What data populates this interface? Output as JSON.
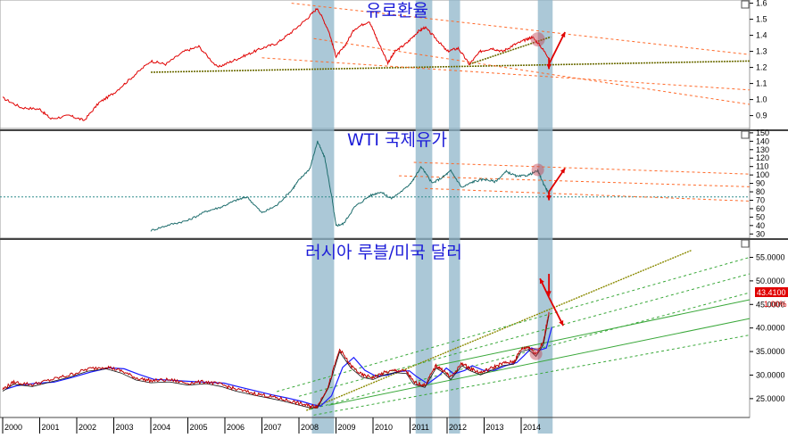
{
  "chart_data": [
    {
      "type": "line",
      "title": "유로환율",
      "x": [
        2000.0,
        2000.5,
        2001.0,
        2001.3,
        2001.8,
        2002.2,
        2002.6,
        2003.0,
        2003.5,
        2004.0,
        2004.4,
        2004.9,
        2005.3,
        2005.8,
        2006.2,
        2006.6,
        2007.0,
        2007.4,
        2007.8,
        2008.2,
        2008.5,
        2008.8,
        2009.0,
        2009.2,
        2009.5,
        2009.9,
        2010.1,
        2010.4,
        2010.6,
        2010.9,
        2011.2,
        2011.4,
        2011.7,
        2012.0,
        2012.3,
        2012.6,
        2012.9,
        2013.2,
        2013.5,
        2013.8,
        2014.1,
        2014.3,
        2014.5,
        2014.75
      ],
      "values": [
        1.01,
        0.95,
        0.94,
        0.88,
        0.9,
        0.87,
        0.98,
        1.04,
        1.14,
        1.24,
        1.22,
        1.3,
        1.33,
        1.2,
        1.24,
        1.28,
        1.32,
        1.35,
        1.42,
        1.5,
        1.57,
        1.43,
        1.27,
        1.32,
        1.44,
        1.49,
        1.38,
        1.23,
        1.3,
        1.35,
        1.42,
        1.45,
        1.38,
        1.3,
        1.32,
        1.22,
        1.3,
        1.32,
        1.3,
        1.34,
        1.37,
        1.39,
        1.34,
        1.26
      ],
      "ylim": [
        0.82,
        1.62
      ],
      "yticks": [
        "0.9",
        "1.0",
        "1.1",
        "1.2",
        "1.3",
        "1.4",
        "1.5",
        "1.6"
      ],
      "color": "#e00000"
    },
    {
      "type": "line",
      "title": "WTI 국제유가",
      "x": [
        2004.0,
        2004.5,
        2005.0,
        2005.5,
        2005.9,
        2006.3,
        2006.6,
        2007.0,
        2007.4,
        2007.8,
        2008.0,
        2008.3,
        2008.5,
        2008.7,
        2008.9,
        2009.0,
        2009.2,
        2009.5,
        2009.9,
        2010.2,
        2010.5,
        2010.9,
        2011.1,
        2011.3,
        2011.6,
        2011.9,
        2012.1,
        2012.4,
        2012.7,
        2013.0,
        2013.3,
        2013.6,
        2013.9,
        2014.2,
        2014.45,
        2014.6,
        2014.75
      ],
      "values": [
        34,
        41,
        46,
        57,
        62,
        70,
        74,
        55,
        64,
        82,
        94,
        108,
        140,
        120,
        70,
        40,
        42,
        62,
        75,
        80,
        72,
        85,
        95,
        110,
        90,
        98,
        105,
        85,
        92,
        95,
        92,
        104,
        98,
        100,
        105,
        90,
        78
      ],
      "ylim": [
        25,
        152
      ],
      "yticks": [
        "30",
        "40",
        "50",
        "60",
        "70",
        "80",
        "90",
        "100",
        "110",
        "120",
        "130",
        "140",
        "150"
      ],
      "color": "#1f6e6e"
    },
    {
      "type": "line",
      "title": "러시아 루블/미국 달러",
      "x": [
        2000.0,
        2000.3,
        2000.8,
        2001.3,
        2001.8,
        2002.3,
        2002.8,
        2003.2,
        2003.6,
        2004.0,
        2004.5,
        2005.0,
        2005.5,
        2005.9,
        2006.3,
        2006.8,
        2007.2,
        2007.6,
        2008.0,
        2008.3,
        2008.5,
        2008.8,
        2009.1,
        2009.4,
        2009.7,
        2010.0,
        2010.3,
        2010.6,
        2010.9,
        2011.1,
        2011.4,
        2011.7,
        2011.9,
        2012.1,
        2012.4,
        2012.6,
        2012.9,
        2013.2,
        2013.5,
        2013.8,
        2014.0,
        2014.2,
        2014.4,
        2014.6,
        2014.75
      ],
      "values": [
        27.0,
        28.5,
        28.0,
        29.0,
        30.0,
        31.3,
        31.8,
        30.9,
        29.4,
        28.8,
        29.0,
        28.3,
        28.6,
        28.0,
        27.0,
        26.1,
        25.5,
        24.8,
        24.0,
        23.4,
        23.4,
        27.8,
        35.5,
        32.0,
        30.0,
        29.5,
        30.5,
        31.0,
        30.8,
        28.5,
        27.8,
        32.0,
        31.0,
        29.5,
        32.5,
        31.5,
        30.5,
        31.5,
        32.5,
        32.8,
        35.5,
        36.0,
        34.5,
        37.0,
        43.4
      ],
      "ylim": [
        21.0,
        58.5
      ],
      "yticks": [
        "25.0000",
        "30.0000",
        "35.0000",
        "40.0000",
        "45.0000",
        "50.0000",
        "55.0000"
      ],
      "last_value_label": "43.4100",
      "change_label": "1.00%",
      "color": "#c00000"
    }
  ],
  "x_axis": {
    "years": [
      "2000",
      "2001",
      "2002",
      "2003",
      "2004",
      "2005",
      "2006",
      "2007",
      "2008",
      "2009",
      "2010",
      "2011",
      "2012",
      "2013",
      "2014"
    ]
  },
  "highlight_bands": [
    [
      2008.35,
      2008.95
    ],
    [
      2011.15,
      2011.6
    ],
    [
      2012.05,
      2012.35
    ],
    [
      2014.45,
      2014.85
    ]
  ]
}
